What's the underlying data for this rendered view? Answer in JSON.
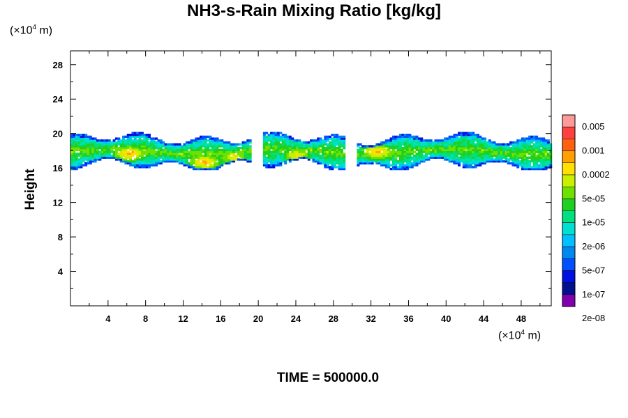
{
  "chart_data": {
    "type": "heatmap",
    "title": "NH3-s-Rain Mixing Ratio [kg/kg]",
    "ylabel": "Height",
    "xlabel": "",
    "x_unit": {
      "prefix": "(×10",
      "exp": "4",
      "suffix": " m)"
    },
    "y_unit": {
      "prefix": "(×10",
      "exp": "4",
      "suffix": " m)"
    },
    "footer": "TIME = 500000.0",
    "xlim": [
      0,
      51.2
    ],
    "ylim": [
      0,
      29.6
    ],
    "x_ticks": [
      "4",
      "8",
      "12",
      "16",
      "20",
      "24",
      "28",
      "32",
      "36",
      "40",
      "44",
      "48"
    ],
    "y_ticks": [
      "4",
      "8",
      "12",
      "16",
      "20",
      "24",
      "28"
    ],
    "colorbar": {
      "labels": [
        "0.005",
        "0.001",
        "0.0002",
        "5e-05",
        "1e-05",
        "2e-06",
        "5e-07",
        "1e-07",
        "2e-08"
      ],
      "colors_top_to_bottom": [
        "#ff9a9a",
        "#ff4040",
        "#ff6010",
        "#ffa000",
        "#ffe000",
        "#c8f000",
        "#70e000",
        "#20d020",
        "#00e080",
        "#00e0d0",
        "#00c0ff",
        "#0088f0",
        "#0050ff",
        "#0010e0",
        "#001090",
        "#8000b0"
      ]
    },
    "field": {
      "description_levels": "layer of rain mixing ratio between heights ~16 and ~20",
      "layer_bottom": 15.8,
      "layer_top": 19.8,
      "gaps_x": [
        19.8,
        29.8
      ],
      "hot_spots": [
        {
          "x": 6.2,
          "y": 17.6,
          "level": 12
        },
        {
          "x": 14.2,
          "y": 16.6,
          "level": 12
        },
        {
          "x": 17.2,
          "y": 17.2,
          "level": 11
        },
        {
          "x": 24.0,
          "y": 17.4,
          "level": 11
        },
        {
          "x": 32.6,
          "y": 17.8,
          "level": 12
        },
        {
          "x": 8.5,
          "y": 17.8,
          "level": 9
        },
        {
          "x": 36.0,
          "y": 17.8,
          "level": 8
        }
      ]
    }
  }
}
